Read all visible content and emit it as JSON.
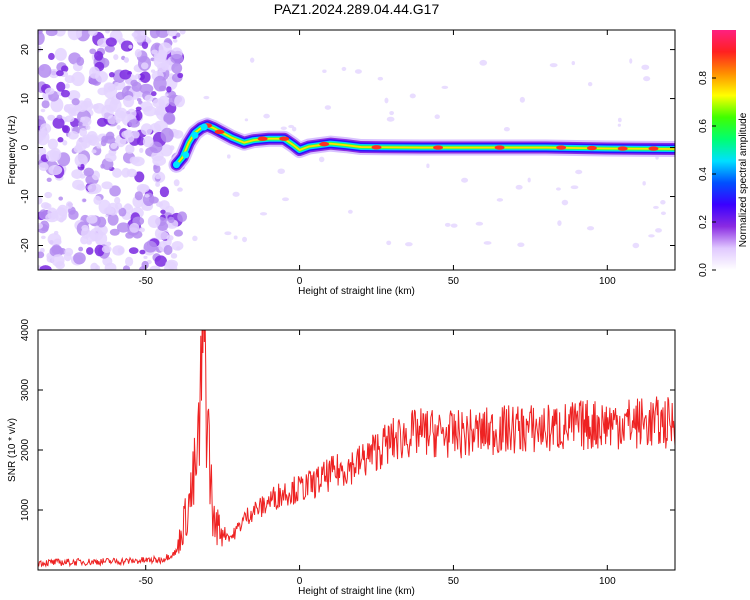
{
  "title": "PAZ1.2024.289.04.44.G17",
  "chart_data": [
    {
      "type": "heatmap",
      "title": "PAZ1.2024.289.04.44.G17",
      "xlabel": "Height of straight line (km)",
      "ylabel": "Frequency (Hz)",
      "xlim": [
        -85,
        122
      ],
      "ylim": [
        -25,
        24
      ],
      "xticks": [
        -50,
        0,
        50,
        100
      ],
      "yticks": [
        -20,
        -10,
        0,
        10,
        20
      ],
      "colorbar": {
        "label": "Normalized spectral amplitude",
        "range": [
          0,
          1
        ],
        "ticks": [
          "0.0",
          "0.2",
          "0.4",
          "0.6",
          "0.8"
        ],
        "colors": [
          "#ffffff",
          "#e0c8ff",
          "#8a2be2",
          "#3a00ff",
          "#0050ff",
          "#00e0ff",
          "#00ff70",
          "#40ff00",
          "#ffff00",
          "#ff9000",
          "#ff2020",
          "#ff2080"
        ]
      },
      "ridge": [
        {
          "x": -40,
          "y": -3.5
        },
        {
          "x": -38,
          "y": -2
        },
        {
          "x": -36,
          "y": 1
        },
        {
          "x": -34,
          "y": 3
        },
        {
          "x": -32,
          "y": 4
        },
        {
          "x": -30,
          "y": 4.5
        },
        {
          "x": -28,
          "y": 4
        },
        {
          "x": -25,
          "y": 3
        },
        {
          "x": -22,
          "y": 2
        },
        {
          "x": -18,
          "y": 1
        },
        {
          "x": -15,
          "y": 1.5
        },
        {
          "x": -10,
          "y": 1.8
        },
        {
          "x": -5,
          "y": 1.8
        },
        {
          "x": -2,
          "y": 0.5
        },
        {
          "x": 0,
          "y": -0.5
        },
        {
          "x": 3,
          "y": 0.2
        },
        {
          "x": 10,
          "y": 0.8
        },
        {
          "x": 15,
          "y": 0.5
        },
        {
          "x": 20,
          "y": 0.1
        },
        {
          "x": 40,
          "y": 0
        },
        {
          "x": 60,
          "y": 0
        },
        {
          "x": 80,
          "y": 0
        },
        {
          "x": 100,
          "y": -0.2
        },
        {
          "x": 122,
          "y": -0.3
        }
      ],
      "noise_region": {
        "x_from": -85,
        "x_to": -40
      }
    },
    {
      "type": "line",
      "xlabel": "Height of straight line (km)",
      "ylabel": "SNR (10 * v/v)",
      "xlim": [
        -85,
        122
      ],
      "ylim": [
        0,
        4000
      ],
      "xticks": [
        -50,
        0,
        50,
        100
      ],
      "yticks": [
        1000,
        2000,
        3000,
        4000
      ],
      "series": [
        {
          "color": "#ee2222",
          "x": [
            -85,
            -75,
            -65,
            -55,
            -45,
            -40,
            -37,
            -35,
            -33,
            -32,
            -31,
            -30,
            -29,
            -28,
            -26,
            -24,
            -22,
            -20,
            -18,
            -15,
            -12,
            -10,
            -5,
            0,
            5,
            10,
            15,
            20,
            25,
            30,
            35,
            40,
            50,
            60,
            70,
            80,
            90,
            100,
            110,
            122
          ],
          "y": [
            120,
            130,
            140,
            150,
            170,
            300,
            900,
            1300,
            1900,
            3000,
            4000,
            2600,
            1600,
            800,
            700,
            600,
            550,
            700,
            850,
            1000,
            1050,
            1150,
            1300,
            1350,
            1450,
            1600,
            1700,
            1800,
            2000,
            2150,
            2250,
            2300,
            2250,
            2300,
            2350,
            2350,
            2400,
            2450,
            2450,
            2450
          ]
        }
      ]
    }
  ]
}
